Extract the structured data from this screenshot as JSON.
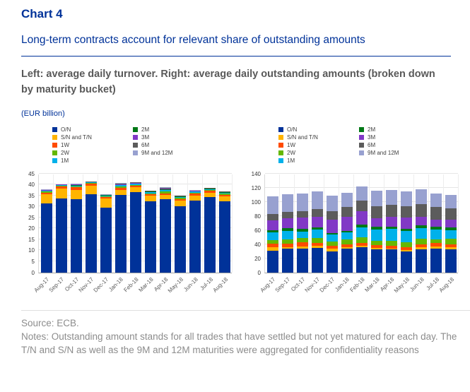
{
  "header": {
    "kicker": "Chart 4",
    "title": "Long-term contracts account for relevant share of outstanding amounts",
    "description": "Left: average daily turnover. Right: average daily outstanding amounts (broken down by maturity bucket)",
    "unit": "(EUR billion)"
  },
  "footer": {
    "source": "Source: ECB.",
    "notes": "Notes: Outstanding amount stands for all trades that have settled but not yet matured for each day. The T/N and S/N as well as the 9M and 12M maturities were aggregated for confidentiality reasons"
  },
  "colors": {
    "accent_blue": "#003299",
    "description_gray": "#595959",
    "footnote_gray": "#8c8c8c"
  },
  "chart_data": [
    {
      "type": "bar",
      "stacked": true,
      "position": "left",
      "grid": true,
      "legend_position": "top",
      "legend_columns": [
        5,
        4
      ],
      "ylim": [
        0,
        45
      ],
      "ytick_step": 5,
      "categories": [
        "Aug-17",
        "Sep-17",
        "Oct-17",
        "Nov-17",
        "Dec-17",
        "Jan-18",
        "Feb-18",
        "Mar-18",
        "Apr-18",
        "May-18",
        "Jun-18",
        "Jul-18",
        "Aug-18"
      ],
      "series": [
        {
          "name": "O/N",
          "color": "#003299",
          "values": [
            31.4,
            33.7,
            33.4,
            35.4,
            29.3,
            35.2,
            36.4,
            32.4,
            33.3,
            30.2,
            32.6,
            34.1,
            32.4
          ]
        },
        {
          "name": "S/N and T/N",
          "color": "#ffb400",
          "values": [
            4.0,
            4.3,
            4.1,
            4.0,
            4.2,
            2.3,
            2.2,
            2.4,
            1.8,
            2.4,
            2.3,
            2.1,
            2.1
          ]
        },
        {
          "name": "1W",
          "color": "#ff4b00",
          "values": [
            0.9,
            1.0,
            1.1,
            0.8,
            0.7,
            0.9,
            0.7,
            0.7,
            0.9,
            0.8,
            0.8,
            0.8,
            0.8
          ]
        },
        {
          "name": "2W",
          "color": "#65b800",
          "values": [
            0.4,
            0.4,
            0.5,
            0.4,
            0.4,
            0.6,
            0.5,
            0.5,
            0.7,
            0.4,
            0.5,
            0.5,
            0.5
          ]
        },
        {
          "name": "1M",
          "color": "#00b1ea",
          "values": [
            0.4,
            0.3,
            0.4,
            0.3,
            0.4,
            0.6,
            0.5,
            0.5,
            0.8,
            0.5,
            0.5,
            0.4,
            0.5
          ]
        },
        {
          "name": "2M",
          "color": "#007816",
          "values": [
            0.1,
            0.1,
            0.2,
            0.1,
            0.1,
            0.25,
            0.2,
            0.2,
            0.3,
            0.2,
            0.2,
            0.1,
            0.15
          ]
        },
        {
          "name": "3M",
          "color": "#8139c6",
          "values": [
            0.15,
            0.15,
            0.3,
            0.15,
            0.15,
            0.3,
            0.3,
            0.2,
            0.4,
            0.2,
            0.2,
            0.2,
            0.2
          ]
        },
        {
          "name": "6M",
          "color": "#5c5c5c",
          "values": [
            0.25,
            0.15,
            0.2,
            0.1,
            0.1,
            0.25,
            0.2,
            0.2,
            0.3,
            0.2,
            0.2,
            0.1,
            0.1
          ]
        },
        {
          "name": "9M and 12M",
          "color": "#98a1d0",
          "values": [
            0.1,
            0.1,
            0.1,
            0.05,
            0.05,
            0.2,
            0.1,
            0.1,
            0.2,
            0.1,
            0.1,
            0.05,
            0.05
          ]
        }
      ]
    },
    {
      "type": "bar",
      "stacked": true,
      "position": "right",
      "grid": true,
      "legend_position": "top",
      "legend_columns": [
        5,
        4
      ],
      "ylim": [
        0,
        140
      ],
      "ytick_step": 20,
      "categories": [
        "Aug-17",
        "Sep-17",
        "Oct-17",
        "Nov-17",
        "Dec-17",
        "Jan-18",
        "Feb-18",
        "Mar-18",
        "Apr-18",
        "May-18",
        "Jun-18",
        "Jul-18",
        "Aug-18"
      ],
      "series": [
        {
          "name": "O/N",
          "color": "#003299",
          "values": [
            31.0,
            33.5,
            33.4,
            34.7,
            29.5,
            34.0,
            35.5,
            33.0,
            32.5,
            30.0,
            33.0,
            34.0,
            32.5
          ]
        },
        {
          "name": "S/N and T/N",
          "color": "#ffb400",
          "values": [
            4.5,
            2.5,
            3.0,
            2.6,
            4.5,
            2.0,
            2.5,
            2.0,
            1.5,
            2.0,
            2.7,
            2.7,
            3.0
          ]
        },
        {
          "name": "1W",
          "color": "#ff4b00",
          "values": [
            5.0,
            5.0,
            6.0,
            4.7,
            4.0,
            4.0,
            3.5,
            3.5,
            3.5,
            4.0,
            4.0,
            4.5,
            4.5
          ]
        },
        {
          "name": "2W",
          "color": "#65b800",
          "values": [
            5.0,
            5.5,
            6.4,
            6.7,
            6.0,
            7.0,
            8.5,
            6.5,
            7.0,
            7.0,
            7.7,
            5.0,
            8.0
          ]
        },
        {
          "name": "1M",
          "color": "#00b1ea",
          "values": [
            11.0,
            12.5,
            9.2,
            12.0,
            9.5,
            10.0,
            14.0,
            16.0,
            17.5,
            15.5,
            15.6,
            14.0,
            12.0
          ]
        },
        {
          "name": "2M",
          "color": "#007816",
          "values": [
            3.5,
            3.5,
            3.4,
            3.3,
            2.5,
            2.0,
            4.0,
            3.5,
            2.5,
            3.5,
            3.5,
            4.0,
            4.0
          ]
        },
        {
          "name": "3M",
          "color": "#8139c6",
          "values": [
            13.5,
            14.0,
            16.0,
            15.0,
            19.0,
            20.0,
            19.0,
            12.5,
            14.5,
            16.0,
            12.5,
            10.5,
            10.5
          ]
        },
        {
          "name": "6M",
          "color": "#5c5c5c",
          "values": [
            9.0,
            9.0,
            9.3,
            11.0,
            12.0,
            14.0,
            15.0,
            17.0,
            16.5,
            16.0,
            17.4,
            17.5,
            16.0
          ]
        },
        {
          "name": "9M and 12M",
          "color": "#98a1d0",
          "values": [
            25.5,
            25.5,
            25.3,
            24.7,
            21.5,
            19.5,
            19.5,
            21.5,
            21.5,
            21.0,
            21.0,
            19.0,
            19.5
          ]
        }
      ]
    }
  ]
}
